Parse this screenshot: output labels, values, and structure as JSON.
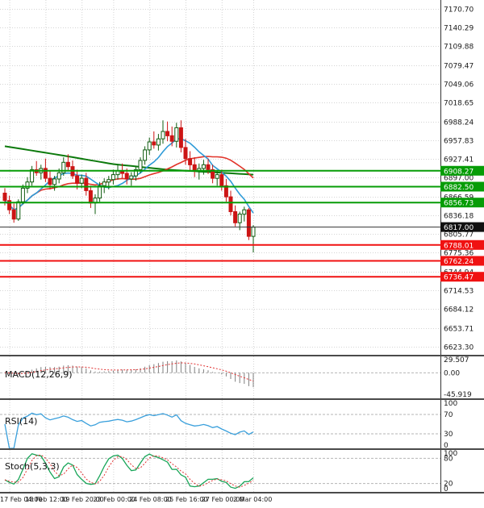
{
  "colors": {
    "background": "#ffffff",
    "grid": "#d4d4d4",
    "axis_text": "#1a1a1a",
    "bull": "#0f5c0f",
    "bear": "#cc1414",
    "ma_fast": "#2f9bd8",
    "ma_slow": "#e2342a",
    "ma_trend": "#0c7a0c",
    "resistance": "#069c06",
    "support": "#f01111",
    "price_label_bg": "#101010",
    "macd_hist": "#7f7f7f",
    "macd_signal": "#e03131",
    "rsi_line": "#3aa0dc",
    "stoch_k": "#18a558",
    "stoch_d": "#e03131",
    "separator": "#4a4a4a"
  },
  "chart_data": {
    "type": "candlestick",
    "grid": "dotted",
    "price_range": [
      6610,
      7185
    ],
    "axis": {
      "price_ticks": [
        "7170.70",
        "7140.29",
        "7109.88",
        "7079.47",
        "7049.06",
        "7018.65",
        "6988.24",
        "6957.83",
        "6927.41",
        "6897.00",
        "6866.59",
        "6836.18",
        "6805.77",
        "6775.36",
        "6744.94",
        "6714.53",
        "6684.12",
        "6653.71",
        "6623.30"
      ],
      "time_labels": [
        {
          "text": "17 Feb 04:00",
          "idx": 1
        },
        {
          "text": "18 Feb 12:00",
          "idx": 9
        },
        {
          "text": "19 Feb 20:00",
          "idx": 17
        },
        {
          "text": "23 Feb 00:00",
          "idx": 24
        },
        {
          "text": "24 Feb 08:00",
          "idx": 32
        },
        {
          "text": "25 Feb 16:00",
          "idx": 40
        },
        {
          "text": "27 Feb 00:00",
          "idx": 48
        },
        {
          "text": "2 Mar 04:00",
          "idx": 55
        }
      ],
      "macd_ticks": [
        {
          "text": "29.507",
          "value": 29.507
        },
        {
          "text": "0.00",
          "value": 0
        },
        {
          "text": "-45.919",
          "value": -45.919
        }
      ],
      "rsi_ticks": [
        {
          "text": "100",
          "value": 100
        },
        {
          "text": "70",
          "value": 70
        },
        {
          "text": "30",
          "value": 30
        },
        {
          "text": "0",
          "value": 0
        }
      ],
      "stoch_ticks": [
        {
          "text": "100",
          "value": 100
        },
        {
          "text": "80",
          "value": 80
        },
        {
          "text": "20",
          "value": 20
        },
        {
          "text": "0",
          "value": 0
        }
      ]
    },
    "levels": {
      "resistance": [
        {
          "label": "6908.27",
          "value": 6908.27
        },
        {
          "label": "6882.50",
          "value": 6882.5
        },
        {
          "label": "6856.73",
          "value": 6856.73
        }
      ],
      "support": [
        {
          "label": "6788.01",
          "value": 6788.01
        },
        {
          "label": "6762.24",
          "value": 6762.24
        },
        {
          "label": "6736.47",
          "value": 6736.47
        }
      ],
      "current_price": {
        "label": "6817.00",
        "value": 6817.0
      }
    },
    "indicators": {
      "macd": {
        "label": "MACD(12,26,9)",
        "fast": 12,
        "slow": 26,
        "signal": 9,
        "range": [
          -45.919,
          29.507
        ]
      },
      "rsi": {
        "label": "RSI(14)",
        "period": 14,
        "levels": [
          70,
          30
        ]
      },
      "stoch": {
        "label": "Stoch(5,3,3)",
        "k": 5,
        "d": 3,
        "slowing": 3,
        "levels": [
          80,
          20
        ]
      }
    },
    "ma_windows": {
      "fast": 8,
      "slow": 21
    },
    "ma_trend_points": [
      [
        0,
        6948
      ],
      [
        12,
        6934
      ],
      [
        24,
        6919
      ],
      [
        36,
        6910
      ],
      [
        48,
        6905
      ],
      [
        55,
        6902
      ]
    ],
    "candles": [
      [
        6872,
        6880,
        6852,
        6860
      ],
      [
        6860,
        6868,
        6838,
        6845
      ],
      [
        6845,
        6855,
        6824,
        6830
      ],
      [
        6830,
        6862,
        6827,
        6858
      ],
      [
        6858,
        6886,
        6854,
        6880
      ],
      [
        6880,
        6898,
        6872,
        6890
      ],
      [
        6890,
        6916,
        6884,
        6910
      ],
      [
        6910,
        6924,
        6900,
        6905
      ],
      [
        6905,
        6918,
        6894,
        6912
      ],
      [
        6912,
        6928,
        6890,
        6896
      ],
      [
        6896,
        6908,
        6878,
        6886
      ],
      [
        6886,
        6900,
        6876,
        6895
      ],
      [
        6895,
        6912,
        6888,
        6905
      ],
      [
        6905,
        6930,
        6900,
        6922
      ],
      [
        6922,
        6935,
        6908,
        6915
      ],
      [
        6915,
        6925,
        6895,
        6900
      ],
      [
        6900,
        6910,
        6878,
        6888
      ],
      [
        6888,
        6902,
        6880,
        6896
      ],
      [
        6896,
        6905,
        6868,
        6876
      ],
      [
        6876,
        6884,
        6848,
        6856
      ],
      [
        6856,
        6870,
        6838,
        6864
      ],
      [
        6864,
        6890,
        6858,
        6884
      ],
      [
        6884,
        6896,
        6872,
        6890
      ],
      [
        6890,
        6900,
        6878,
        6894
      ],
      [
        6894,
        6910,
        6886,
        6902
      ],
      [
        6902,
        6918,
        6894,
        6908
      ],
      [
        6908,
        6920,
        6896,
        6904
      ],
      [
        6904,
        6912,
        6886,
        6895
      ],
      [
        6895,
        6906,
        6884,
        6900
      ],
      [
        6900,
        6915,
        6892,
        6910
      ],
      [
        6910,
        6930,
        6904,
        6925
      ],
      [
        6925,
        6948,
        6918,
        6942
      ],
      [
        6942,
        6962,
        6934,
        6955
      ],
      [
        6955,
        6972,
        6944,
        6950
      ],
      [
        6950,
        6968,
        6941,
        6960
      ],
      [
        6960,
        6990,
        6952,
        6972
      ],
      [
        6972,
        6988,
        6956,
        6965
      ],
      [
        6965,
        6980,
        6948,
        6956
      ],
      [
        6956,
        6986,
        6946,
        6978
      ],
      [
        6978,
        6990,
        6938,
        6946
      ],
      [
        6946,
        6960,
        6918,
        6928
      ],
      [
        6928,
        6940,
        6908,
        6918
      ],
      [
        6918,
        6930,
        6898,
        6908
      ],
      [
        6908,
        6920,
        6894,
        6912
      ],
      [
        6912,
        6926,
        6902,
        6918
      ],
      [
        6918,
        6928,
        6903,
        6910
      ],
      [
        6910,
        6918,
        6888,
        6896
      ],
      [
        6896,
        6908,
        6884,
        6902
      ],
      [
        6902,
        6910,
        6876,
        6884
      ],
      [
        6884,
        6895,
        6858,
        6866
      ],
      [
        6866,
        6876,
        6836,
        6842
      ],
      [
        6842,
        6852,
        6818,
        6824
      ],
      [
        6824,
        6842,
        6812,
        6838
      ],
      [
        6838,
        6850,
        6826,
        6845
      ],
      [
        6845,
        6848,
        6796,
        6802
      ],
      [
        6802,
        6820,
        6776,
        6817
      ]
    ]
  }
}
